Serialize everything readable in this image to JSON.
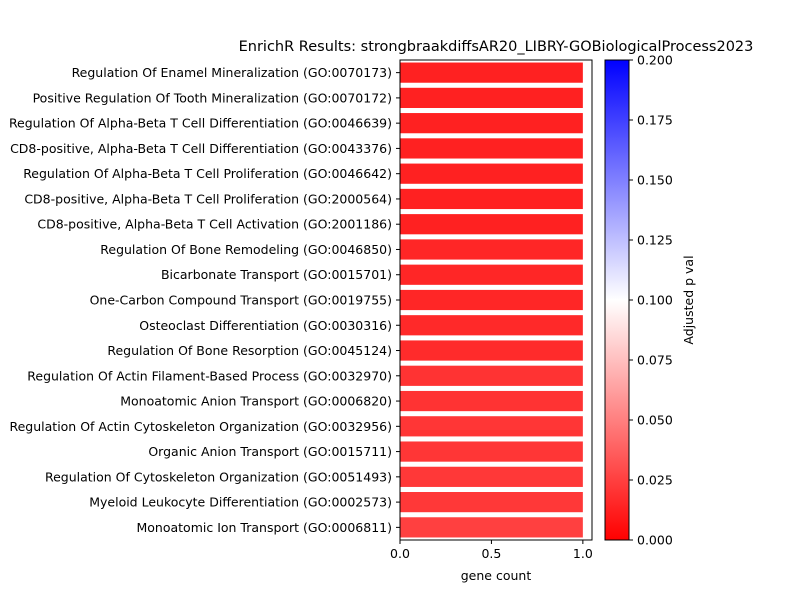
{
  "chart_data": {
    "type": "bar",
    "orientation": "horizontal",
    "title": "EnrichR Results: strongbraakdiffsAR20_LIBRY-GOBiologicalProcess2023",
    "xlabel": "gene count",
    "xlim": [
      0,
      1.05
    ],
    "xticks": [
      "0.0",
      "0.5",
      "1.0"
    ],
    "xtick_values": [
      0.0,
      0.5,
      1.0
    ],
    "categories": [
      "Regulation Of Enamel Mineralization (GO:0070173)",
      "Positive Regulation Of Tooth Mineralization (GO:0070172)",
      "Regulation Of Alpha-Beta T Cell Differentiation (GO:0046639)",
      "CD8-positive, Alpha-Beta T Cell Differentiation (GO:0043376)",
      "Regulation Of Alpha-Beta T Cell Proliferation (GO:0046642)",
      "CD8-positive, Alpha-Beta T Cell Proliferation (GO:2000564)",
      "CD8-positive, Alpha-Beta T Cell Activation (GO:2001186)",
      "Regulation Of Bone Remodeling (GO:0046850)",
      "Bicarbonate Transport (GO:0015701)",
      "One-Carbon Compound Transport (GO:0019755)",
      "Osteoclast Differentiation (GO:0030316)",
      "Regulation Of Bone Resorption (GO:0045124)",
      "Regulation Of Actin Filament-Based Process (GO:0032970)",
      "Monoatomic Anion Transport (GO:0006820)",
      "Regulation Of Actin Cytoskeleton Organization (GO:0032956)",
      "Organic Anion Transport (GO:0015711)",
      "Regulation Of Cytoskeleton Organization (GO:0051493)",
      "Myeloid Leukocyte Differentiation (GO:0002573)",
      "Monoatomic Ion Transport (GO:0006811)"
    ],
    "values": [
      1,
      1,
      1,
      1,
      1,
      1,
      1,
      1,
      1,
      1,
      1,
      1,
      1,
      1,
      1,
      1,
      1,
      1,
      1
    ],
    "adjusted_p_vals": [
      0.013,
      0.013,
      0.013,
      0.013,
      0.013,
      0.013,
      0.013,
      0.015,
      0.015,
      0.015,
      0.016,
      0.017,
      0.02,
      0.02,
      0.021,
      0.021,
      0.022,
      0.022,
      0.025
    ],
    "colorbar": {
      "label": "Adjusted p val",
      "range": [
        0.0,
        0.2
      ],
      "colormap": "bwr_r",
      "ticks": [
        "0.000",
        "0.025",
        "0.050",
        "0.075",
        "0.100",
        "0.125",
        "0.150",
        "0.175",
        "0.200"
      ],
      "tick_values": [
        0.0,
        0.025,
        0.05,
        0.075,
        0.1,
        0.125,
        0.15,
        0.175,
        0.2
      ],
      "color_low": "#ff0000",
      "color_mid": "#ffffff",
      "color_high": "#0000ff"
    },
    "grid": false
  }
}
